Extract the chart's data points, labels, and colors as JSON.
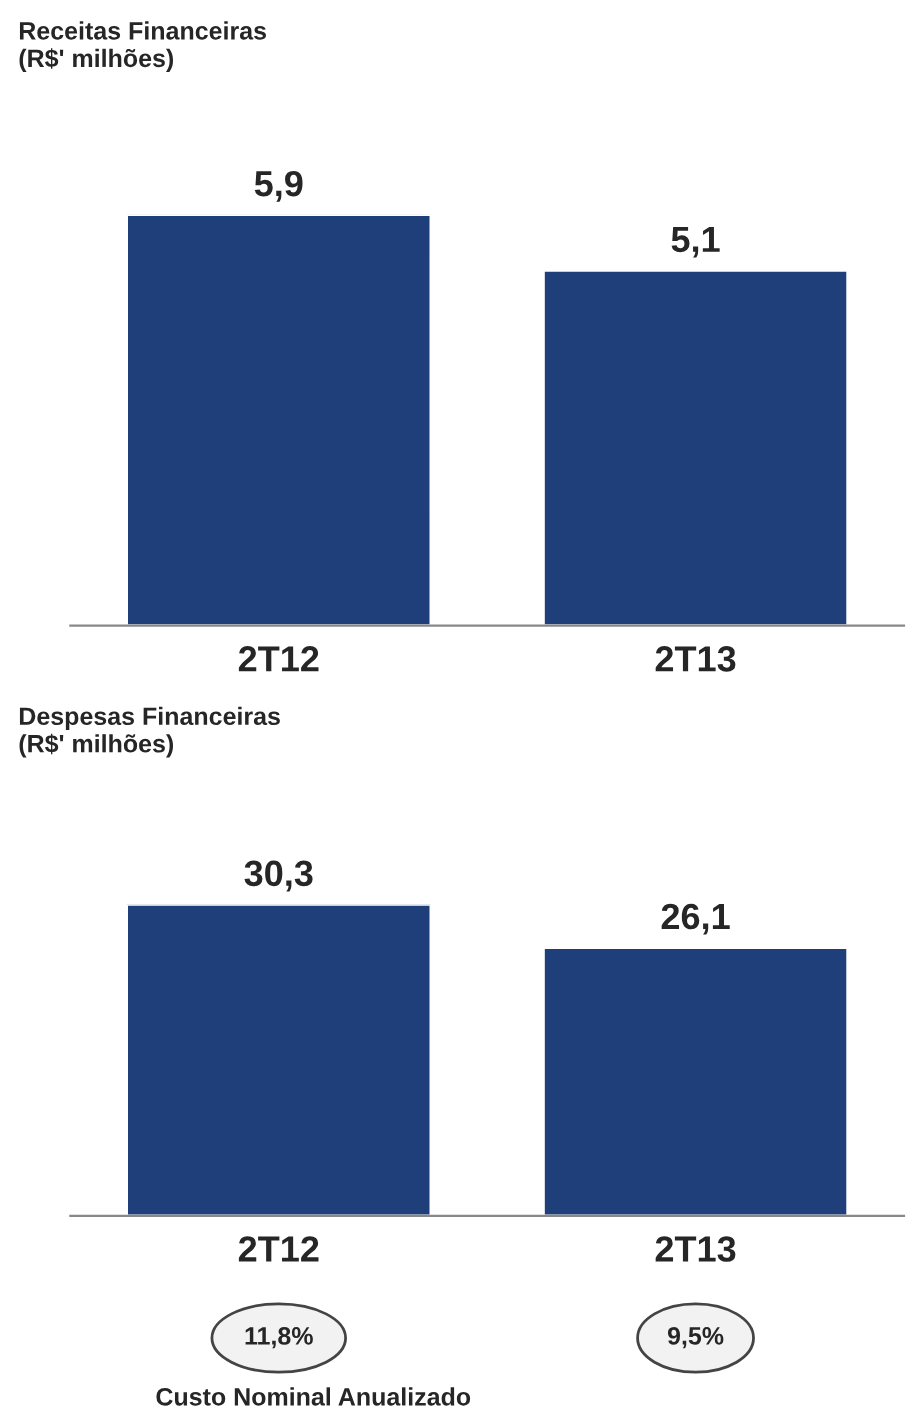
{
  "chart_data": [
    {
      "type": "bar",
      "title": "Receitas Financeiras\n(R$' milhões)",
      "categories": [
        "2T12",
        "2T13"
      ],
      "series": [
        {
          "color": "#1f3f7a",
          "values": [
            5.9,
            5.1
          ],
          "value_labels": [
            "5,9",
            "5,1"
          ]
        }
      ]
    },
    {
      "type": "bar",
      "title": "Despesas Financeiras\n(R$' milhões)",
      "categories": [
        "2T12",
        "2T13"
      ],
      "series": [
        {
          "color": "#1f3f7a",
          "values": [
            30.3,
            26.1
          ],
          "value_labels": [
            "30,3",
            "26,1"
          ]
        }
      ],
      "annotations": [
        "11,8%",
        "9,5%",
        "Custo Nominal Anualizado"
      ]
    }
  ]
}
